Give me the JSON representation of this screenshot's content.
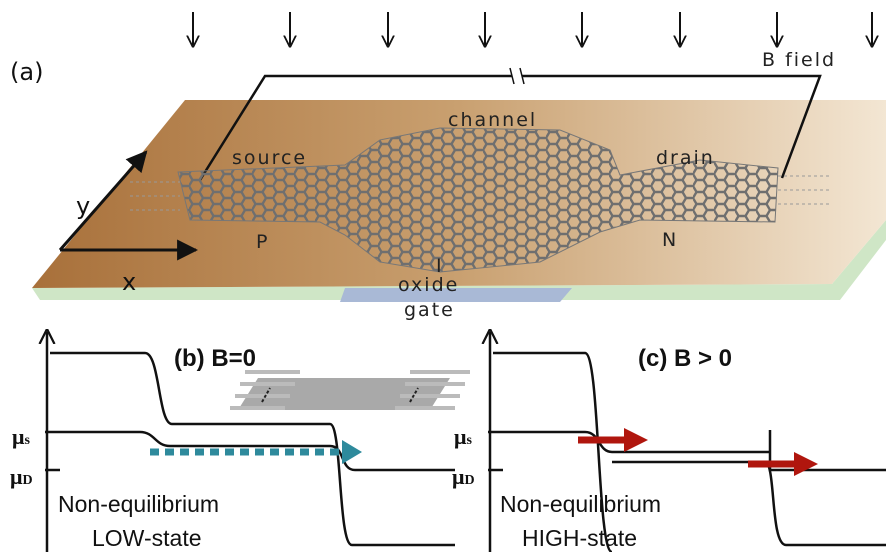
{
  "panel_a": {
    "label": "(a)",
    "field_label": "B field",
    "channel": "channel",
    "source": "source",
    "drain": "drain",
    "axis_y": "y",
    "axis_x": "x",
    "p_region": "P",
    "i_region": "I",
    "n_region": "N",
    "oxide": "oxide",
    "gate": "gate"
  },
  "panel_b": {
    "title": "(b) B=0",
    "mu_s": {
      "symbol": "μ",
      "subscript": "s"
    },
    "mu_d": {
      "symbol": "μ",
      "subscript": "D"
    },
    "caption_line1": "Non-equilibrium",
    "caption_line2": "LOW-state"
  },
  "panel_c": {
    "title": "(c) B > 0",
    "mu_s": {
      "symbol": "μ",
      "subscript": "s"
    },
    "mu_d": {
      "symbol": "μ",
      "subscript": "D"
    },
    "caption_line1": "Non-equilibrium",
    "caption_line2": "HIGH-state"
  }
}
